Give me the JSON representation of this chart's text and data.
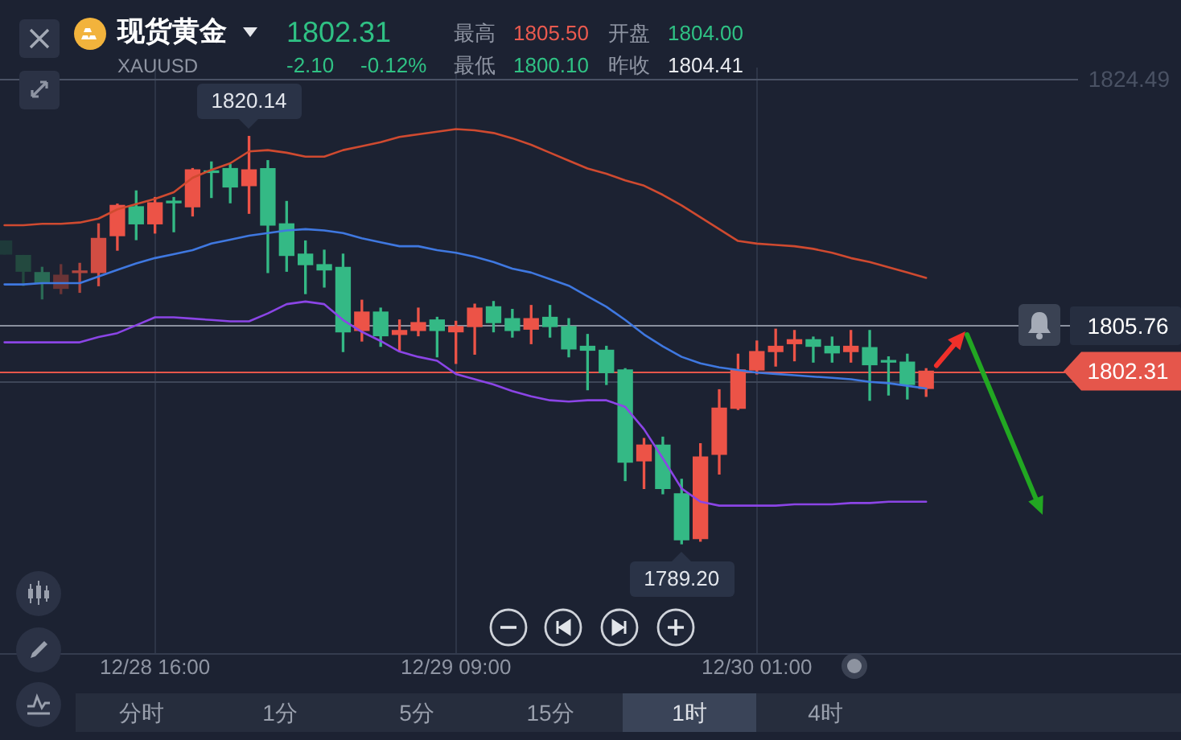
{
  "chart_data": {
    "type": "candlestick",
    "title": "现货黄金",
    "subtitle": "XAUUSD",
    "categories": [
      null,
      null,
      null,
      null,
      null,
      null,
      null,
      null,
      "12/28 16:00",
      null,
      null,
      null,
      null,
      null,
      null,
      null,
      null,
      null,
      null,
      null,
      null,
      null,
      null,
      null,
      "12/29 09:00",
      null,
      null,
      null,
      null,
      null,
      null,
      null,
      null,
      null,
      null,
      null,
      null,
      null,
      null,
      null,
      "12/30 01:00",
      null,
      null,
      null,
      null,
      null,
      null,
      null,
      null,
      null
    ],
    "ohlc": [
      [
        1812.2,
        1812.2,
        1811.2,
        1811.2
      ],
      [
        1811.1,
        1811.1,
        1808.8,
        1809.9
      ],
      [
        1809.8,
        1810.2,
        1807.8,
        1809.0
      ],
      [
        1808.6,
        1810.4,
        1808.2,
        1809.6
      ],
      [
        1809.8,
        1810.5,
        1808.3,
        1809.9
      ],
      [
        1809.8,
        1813.5,
        1808.8,
        1812.4
      ],
      [
        1812.6,
        1815.0,
        1811.5,
        1814.9
      ],
      [
        1814.8,
        1816.0,
        1812.3,
        1813.5
      ],
      [
        1813.5,
        1815.5,
        1812.8,
        1815.1
      ],
      [
        1815.2,
        1815.5,
        1812.9,
        1815.1
      ],
      [
        1814.8,
        1817.7,
        1814.1,
        1817.6
      ],
      [
        1817.5,
        1818.2,
        1815.5,
        1817.4
      ],
      [
        1817.7,
        1818.0,
        1815.1,
        1816.3
      ],
      [
        1816.4,
        1820.14,
        1814.3,
        1817.6
      ],
      [
        1817.7,
        1818.3,
        1809.8,
        1813.4
      ],
      [
        1813.5,
        1815.2,
        1809.9,
        1811.1
      ],
      [
        1811.2,
        1812.2,
        1808.2,
        1810.4
      ],
      [
        1810.4,
        1811.5,
        1808.7,
        1810.0
      ],
      [
        1810.2,
        1811.2,
        1803.8,
        1805.3
      ],
      [
        1805.4,
        1807.7,
        1804.6,
        1806.8
      ],
      [
        1806.8,
        1807.1,
        1804.2,
        1805.0
      ],
      [
        1805.1,
        1806.2,
        1803.8,
        1805.4
      ],
      [
        1805.4,
        1807.1,
        1805.0,
        1806.0
      ],
      [
        1806.2,
        1806.4,
        1803.4,
        1805.4
      ],
      [
        1805.3,
        1806.1,
        1802.9,
        1805.7
      ],
      [
        1805.7,
        1807.4,
        1803.6,
        1807.1
      ],
      [
        1807.2,
        1807.6,
        1805.3,
        1806.0
      ],
      [
        1806.3,
        1807.0,
        1804.9,
        1805.4
      ],
      [
        1805.5,
        1807.3,
        1804.4,
        1806.3
      ],
      [
        1806.4,
        1807.3,
        1804.9,
        1805.7
      ],
      [
        1805.7,
        1806.3,
        1803.4,
        1804.0
      ],
      [
        1804.2,
        1805.1,
        1800.9,
        1803.9
      ],
      [
        1803.9,
        1804.2,
        1801.3,
        1802.2
      ],
      [
        1802.4,
        1802.5,
        1794.0,
        1795.4
      ],
      [
        1795.5,
        1797.2,
        1793.4,
        1796.7
      ],
      [
        1796.7,
        1797.3,
        1793.0,
        1793.4
      ],
      [
        1793.0,
        1794.1,
        1789.2,
        1789.5
      ],
      [
        1789.6,
        1796.8,
        1789.4,
        1795.8
      ],
      [
        1796.0,
        1800.9,
        1794.5,
        1799.5
      ],
      [
        1799.5,
        1803.6,
        1799.4,
        1802.4
      ],
      [
        1802.4,
        1804.6,
        1802.1,
        1803.8
      ],
      [
        1803.8,
        1805.5,
        1802.7,
        1804.2
      ],
      [
        1804.4,
        1805.4,
        1803.1,
        1804.7
      ],
      [
        1804.7,
        1804.9,
        1803.0,
        1804.2
      ],
      [
        1804.2,
        1804.9,
        1803.0,
        1803.7
      ],
      [
        1803.8,
        1805.4,
        1803.0,
        1804.2
      ],
      [
        1804.1,
        1805.4,
        1800.1,
        1802.8
      ],
      [
        1803.1,
        1803.4,
        1800.5,
        1803.0
      ],
      [
        1803.0,
        1803.6,
        1800.2,
        1801.3
      ],
      [
        1801.0,
        1802.5,
        1800.4,
        1802.31
      ]
    ],
    "colors": [
      "#1e3a3a",
      "#23493f",
      "#2a6a55",
      "#6a3436",
      "#b0463f",
      "#d24d43",
      "#ec5347",
      "#34b985",
      "#ec5347",
      "#34b985",
      "#ec5347",
      "#34b985",
      "#34b985",
      "#ec5347",
      "#34b985",
      "#34b985",
      "#34b985",
      "#34b985",
      "#34b985",
      "#ec5347",
      "#34b985",
      "#ec5347",
      "#ec5347",
      "#34b985",
      "#ec5347",
      "#ec5347",
      "#34b985",
      "#34b985",
      "#ec5347",
      "#34b985",
      "#34b985",
      "#34b985",
      "#34b985",
      "#34b985",
      "#ec5347",
      "#34b985",
      "#34b985",
      "#ec5347",
      "#ec5347",
      "#ec5347",
      "#ec5347",
      "#ec5347",
      "#ec5347",
      "#34b985",
      "#34b985",
      "#ec5347",
      "#34b985",
      "#34b985",
      "#34b985",
      "#ec5347"
    ],
    "series": [
      {
        "type": "line",
        "color": "#cf4a30",
        "values": [
          1813.4,
          1813.4,
          1813.5,
          1813.5,
          1813.6,
          1813.9,
          1814.6,
          1815.0,
          1815.4,
          1815.9,
          1817.0,
          1817.6,
          1818.1,
          1819.0,
          1819.1,
          1818.9,
          1818.6,
          1818.6,
          1819.1,
          1819.4,
          1819.7,
          1820.1,
          1820.3,
          1820.5,
          1820.7,
          1820.6,
          1820.4,
          1820.0,
          1819.5,
          1818.9,
          1818.3,
          1817.7,
          1817.3,
          1816.8,
          1816.4,
          1815.7,
          1814.9,
          1814.0,
          1813.1,
          1812.2,
          1812.0,
          1811.9,
          1811.8,
          1811.6,
          1811.3,
          1810.9,
          1810.6,
          1810.2,
          1809.8,
          1809.4
        ]
      },
      {
        "type": "line",
        "color": "#3f78e0",
        "values": [
          1808.9,
          1808.9,
          1809.0,
          1809.0,
          1809.0,
          1809.5,
          1810.0,
          1810.5,
          1810.9,
          1811.2,
          1811.5,
          1812.0,
          1812.3,
          1812.6,
          1812.8,
          1813.0,
          1813.1,
          1813.0,
          1812.8,
          1812.4,
          1812.1,
          1811.8,
          1811.8,
          1811.5,
          1811.3,
          1811.0,
          1810.6,
          1810.1,
          1809.8,
          1809.3,
          1808.8,
          1808.0,
          1807.2,
          1806.2,
          1805.1,
          1804.2,
          1803.4,
          1802.9,
          1802.6,
          1802.4,
          1802.2,
          1802.1,
          1802.0,
          1801.9,
          1801.8,
          1801.7,
          1801.5,
          1801.4,
          1801.2,
          1801.0
        ]
      },
      {
        "type": "line",
        "color": "#8b45e6",
        "values": [
          1804.5,
          1804.5,
          1804.5,
          1804.5,
          1804.5,
          1804.9,
          1805.2,
          1805.8,
          1806.4,
          1806.4,
          1806.3,
          1806.2,
          1806.1,
          1806.1,
          1806.7,
          1807.4,
          1807.6,
          1807.4,
          1806.2,
          1805.3,
          1804.6,
          1803.8,
          1803.4,
          1803.1,
          1802.1,
          1801.7,
          1801.3,
          1800.8,
          1800.4,
          1800.1,
          1800.0,
          1800.1,
          1800.1,
          1799.6,
          1797.9,
          1795.7,
          1793.4,
          1792.4,
          1792.1,
          1792.1,
          1792.1,
          1792.1,
          1792.2,
          1792.2,
          1792.2,
          1792.3,
          1792.3,
          1792.4,
          1792.4,
          1792.4
        ]
      }
    ],
    "ylim": [
      1774.3,
      1830.5
    ],
    "grid": "x",
    "ref_lines": [
      {
        "axis": "y",
        "value": 1824.49,
        "label": "1824.49",
        "color": "#4a5264"
      },
      {
        "axis": "y",
        "value": 1805.76,
        "label": "1805.76",
        "color": "#8a909e"
      },
      {
        "axis": "y",
        "value": 1802.31,
        "label": "1802.31",
        "color": "#e5564b"
      },
      {
        "axis": "y",
        "value": 1801.5,
        "color": "#3e4658"
      }
    ],
    "annotations": [
      "1802.31",
      "-2.10",
      "-0.12%",
      "最高",
      "1805.50",
      "开盘",
      "1804.00",
      "最低",
      "1800.10",
      "昨收",
      "1804.41",
      "分时",
      "1分",
      "5分",
      "15分",
      "1时",
      "4时",
      {
        "text": "1820.14",
        "y": 1820.14
      },
      {
        "text": "1789.20",
        "y": 1789.2
      }
    ]
  }
}
